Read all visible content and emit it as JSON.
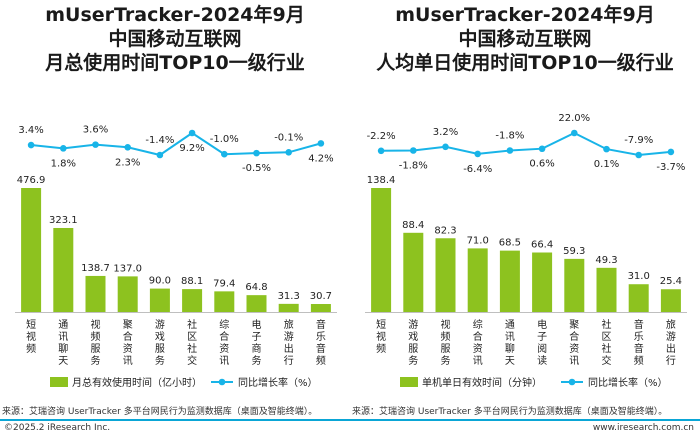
{
  "left": {
    "title_lines": [
      "mUserTracker-2024年9月",
      "中国移动互联网",
      "月总使用时间TOP10一级行业"
    ],
    "source": "来源：艾瑞咨询 UserTracker 多平台网民行为监测数据库（桌面及智能终端）。"
  },
  "right": {
    "title_lines": [
      "mUserTracker-2024年9月",
      "中国移动互联网",
      "人均单日使用时间TOP10一级行业"
    ],
    "source": "来源：艾瑞咨询 UserTracker 多平台网民行为监测数据库（桌面及智能终端）。"
  },
  "footer": {
    "left": "©2025.2 iResearch Inc.",
    "right": "www.iresearch.com.cn"
  },
  "colors": {
    "bar": "#8dc21f",
    "line": "#18b4e8"
  },
  "chart_data": [
    {
      "type": "bar",
      "categories": [
        "短视频",
        "通讯聊天",
        "视频服务",
        "聚合资讯",
        "游戏服务",
        "社区社交",
        "综合资讯",
        "电子商务",
        "旅游出行",
        "音乐音频"
      ],
      "series": [
        {
          "name": "月总有效使用时间（亿小时）",
          "type": "bar",
          "values": [
            476.9,
            323.1,
            138.7,
            137.0,
            90.0,
            88.1,
            79.4,
            64.8,
            31.3,
            30.7
          ]
        },
        {
          "name": "同比增长率（%）",
          "type": "line",
          "values": [
            3.4,
            1.8,
            3.6,
            2.3,
            -1.4,
            9.2,
            -1.0,
            -0.5,
            -0.1,
            4.2
          ]
        }
      ],
      "value_labels": [
        "476.9",
        "323.1",
        "138.7",
        "137.0",
        "90.0",
        "88.1",
        "79.4",
        "64.8",
        "31.3",
        "30.7"
      ],
      "growth_labels": [
        "3.4%",
        "1.8%",
        "3.6%",
        "2.3%",
        "-1.4%",
        "9.2%",
        "-1.0%",
        "-0.5%",
        "-0.1%",
        "4.2%"
      ],
      "legend": {
        "bar": "月总有效使用时间（亿小时）",
        "line": "同比增长率（%）"
      },
      "legend_position": "bottom",
      "grid": false
    },
    {
      "type": "bar",
      "categories": [
        "短视频",
        "游戏服务",
        "视频服务",
        "综合资讯",
        "通讯聊天",
        "电子阅读",
        "聚合资讯",
        "社区社交",
        "音乐音频",
        "旅游出行"
      ],
      "series": [
        {
          "name": "单机单日有效时间（分钟）",
          "type": "bar",
          "values": [
            138.4,
            88.4,
            82.3,
            71.0,
            68.5,
            66.4,
            59.3,
            49.3,
            31.0,
            25.4
          ]
        },
        {
          "name": "同比增长率（%）",
          "type": "line",
          "values": [
            -2.2,
            -1.8,
            3.2,
            -6.4,
            -1.8,
            0.6,
            22.0,
            0.1,
            -7.9,
            -3.7
          ]
        }
      ],
      "value_labels": [
        "138.4",
        "88.4",
        "82.3",
        "71.0",
        "68.5",
        "66.4",
        "59.3",
        "49.3",
        "31.0",
        "25.4"
      ],
      "growth_labels": [
        "-2.2%",
        "-1.8%",
        "3.2%",
        "-6.4%",
        "-1.8%",
        "0.6%",
        "22.0%",
        "0.1%",
        "-7.9%",
        "-3.7%"
      ],
      "legend": {
        "bar": "单机单日有效时间（分钟）",
        "line": "同比增长率（%）"
      },
      "legend_position": "bottom",
      "grid": false
    }
  ]
}
